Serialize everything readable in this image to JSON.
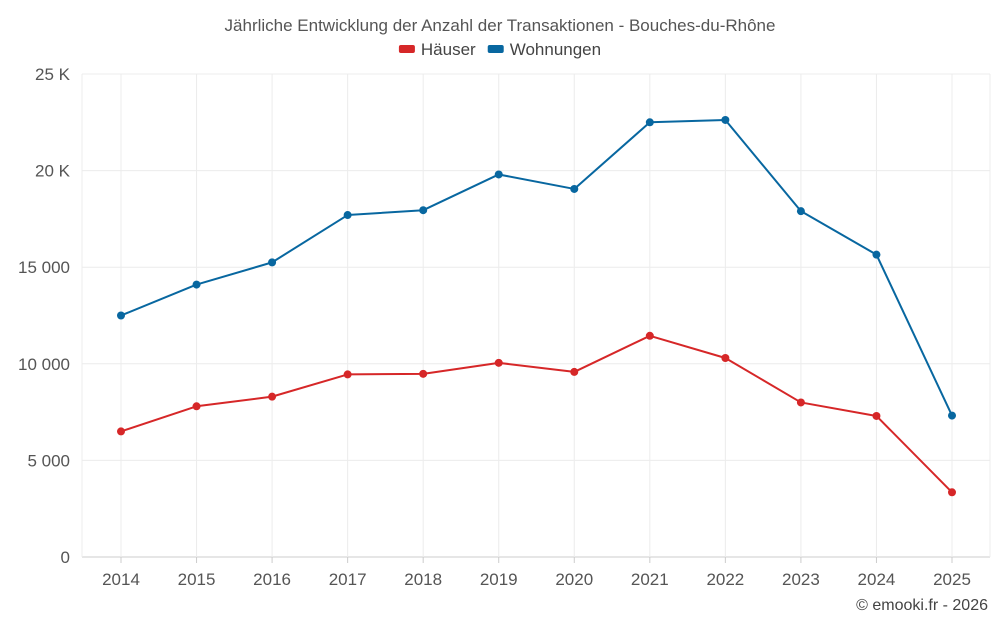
{
  "chart_data": {
    "type": "line",
    "title": "Jährliche Entwicklung der Anzahl der Transaktionen - Bouches-du-Rhône",
    "categories": [
      "2014",
      "2015",
      "2016",
      "2017",
      "2018",
      "2019",
      "2020",
      "2021",
      "2022",
      "2023",
      "2024",
      "2025"
    ],
    "series": [
      {
        "name": "Häuser",
        "color": "#d62728",
        "values": [
          6500,
          7800,
          8300,
          9450,
          9480,
          10050,
          9580,
          11450,
          10300,
          8000,
          7300,
          3350
        ]
      },
      {
        "name": "Wohnungen",
        "color": "#0867a0",
        "values": [
          12500,
          14100,
          15250,
          17700,
          17950,
          19800,
          19050,
          22500,
          22620,
          17900,
          15650,
          7320
        ]
      }
    ],
    "y_ticks": [
      {
        "value": 0,
        "label": "0"
      },
      {
        "value": 5000,
        "label": "5 000"
      },
      {
        "value": 10000,
        "label": "10 000"
      },
      {
        "value": 15000,
        "label": "15 000"
      },
      {
        "value": 20000,
        "label": "20 K"
      },
      {
        "value": 25000,
        "label": "25 K"
      }
    ],
    "ylim": [
      0,
      25000
    ],
    "legend_position": "top-center",
    "grid": true
  },
  "credit": "© emooki.fr - 2026"
}
